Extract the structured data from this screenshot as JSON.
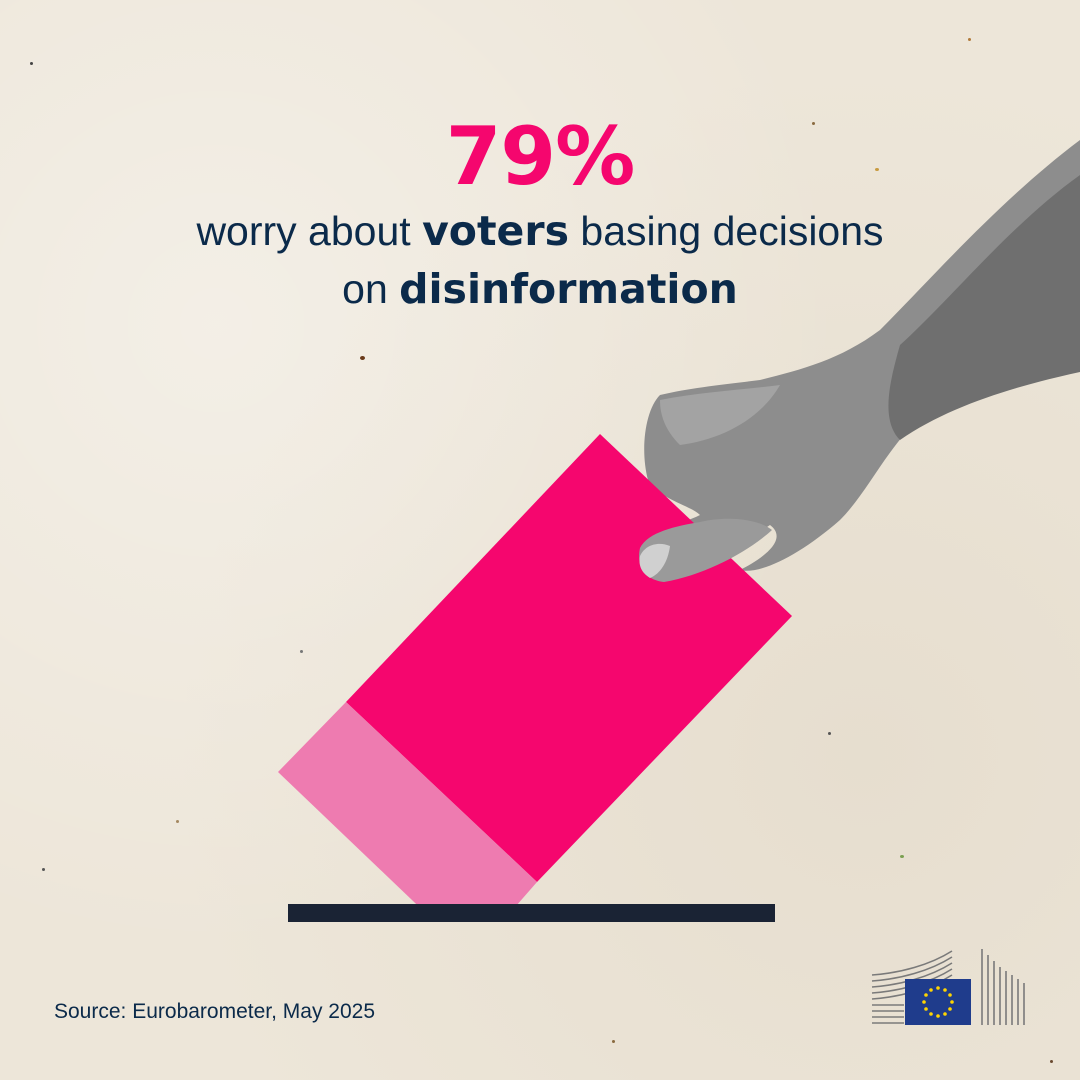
{
  "headline": {
    "stat": "79%",
    "line1_pre": "worry about ",
    "line1_bold": "voters",
    "line1_post": " basing decisions",
    "line2_pre": "on ",
    "line2_bold": "disinformation"
  },
  "source": "Source: Eurobarometer, May 2025",
  "illustration": {
    "ballot_color": "#f5066e",
    "ballot_fold_color": "#ee7bb0",
    "slot_color": "#1a2334",
    "icons": [
      "hand-icon",
      "ballot-paper-icon",
      "ballot-box-slot-icon"
    ]
  },
  "logo": {
    "name": "european-commission-logo",
    "flag_color": "#1f3c8c",
    "star_color": "#ffd500"
  },
  "colors": {
    "accent": "#f5066e",
    "text": "#0b2a4a",
    "background": "#ede6d9"
  }
}
